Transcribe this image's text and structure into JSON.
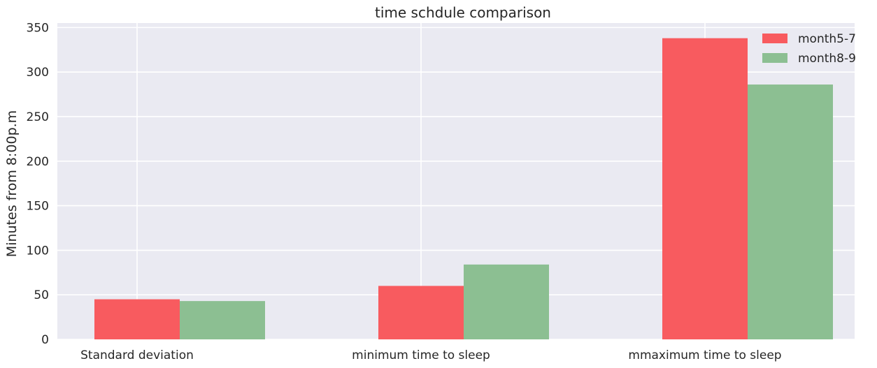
{
  "chart_data": {
    "type": "bar",
    "title": "time schdule comparison",
    "xlabel": "",
    "ylabel": "Minutes from 8:00p.m",
    "categories": [
      "Standard deviation",
      "minimum time to sleep",
      "mmaximum time to sleep"
    ],
    "series": [
      {
        "name": "month5-7",
        "color": "#f85b5f",
        "values": [
          45,
          60,
          338
        ]
      },
      {
        "name": "month8-9",
        "color": "#8cbf92",
        "values": [
          43,
          84,
          286
        ]
      }
    ],
    "ylim": [
      0,
      355
    ],
    "yticks": [
      0,
      50,
      100,
      150,
      200,
      250,
      300,
      350
    ],
    "grid": true,
    "legend_position": "top-right",
    "background": "#eaeaf2"
  }
}
